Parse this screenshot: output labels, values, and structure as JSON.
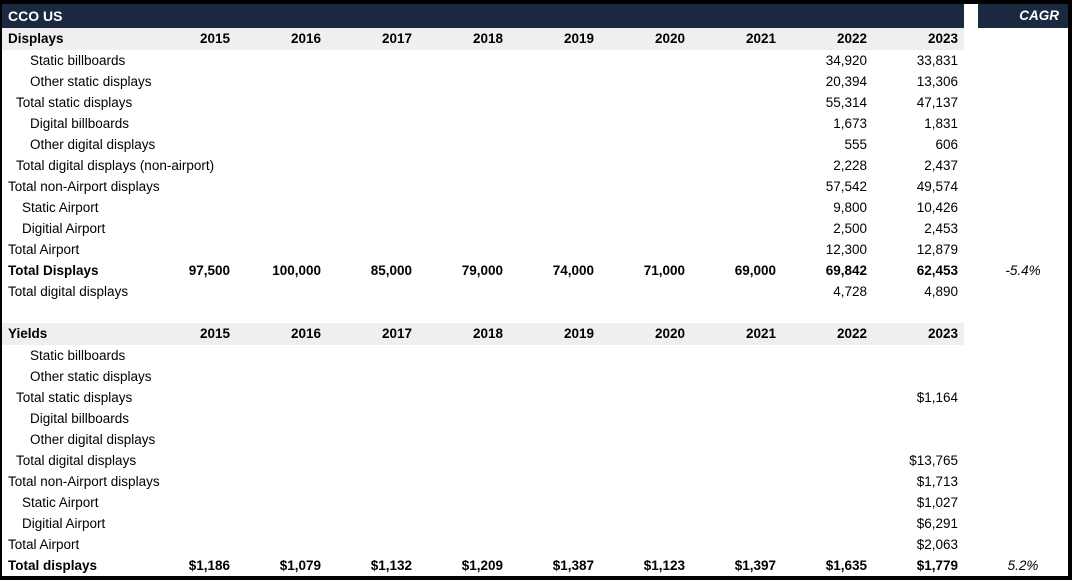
{
  "colors": {
    "header_bar": "#1a2940",
    "header_band": "#efefef",
    "text": "#000000"
  },
  "titlebar": {
    "title": "CCO US",
    "cagr_label": "CAGR"
  },
  "years": [
    "2015",
    "2016",
    "2017",
    "2018",
    "2019",
    "2020",
    "2021",
    "2022",
    "2023"
  ],
  "sections": [
    {
      "label": "Displays",
      "rows": [
        {
          "label": "Static billboards",
          "indent": 3,
          "bold": false,
          "values": [
            "",
            "",
            "",
            "",
            "",
            "",
            "",
            "34,920",
            "33,831"
          ],
          "cagr": ""
        },
        {
          "label": "Other static displays",
          "indent": 3,
          "bold": false,
          "values": [
            "",
            "",
            "",
            "",
            "",
            "",
            "",
            "20,394",
            "13,306"
          ],
          "cagr": ""
        },
        {
          "label": "Total static displays",
          "indent": 1,
          "bold": false,
          "values": [
            "",
            "",
            "",
            "",
            "",
            "",
            "",
            "55,314",
            "47,137"
          ],
          "cagr": ""
        },
        {
          "label": "Digital billboards",
          "indent": 3,
          "bold": false,
          "values": [
            "",
            "",
            "",
            "",
            "",
            "",
            "",
            "1,673",
            "1,831"
          ],
          "cagr": ""
        },
        {
          "label": "Other digital displays",
          "indent": 3,
          "bold": false,
          "values": [
            "",
            "",
            "",
            "",
            "",
            "",
            "",
            "555",
            "606"
          ],
          "cagr": ""
        },
        {
          "label": "Total digital displays (non-airport)",
          "indent": 1,
          "bold": false,
          "values": [
            "",
            "",
            "",
            "",
            "",
            "",
            "",
            "2,228",
            "2,437"
          ],
          "cagr": ""
        },
        {
          "label": "Total non-Airport displays",
          "indent": 0,
          "bold": false,
          "values": [
            "",
            "",
            "",
            "",
            "",
            "",
            "",
            "57,542",
            "49,574"
          ],
          "cagr": ""
        },
        {
          "label": "Static Airport",
          "indent": 2,
          "bold": false,
          "values": [
            "",
            "",
            "",
            "",
            "",
            "",
            "",
            "9,800",
            "10,426"
          ],
          "cagr": ""
        },
        {
          "label": "Digitial Airport",
          "indent": 2,
          "bold": false,
          "values": [
            "",
            "",
            "",
            "",
            "",
            "",
            "",
            "2,500",
            "2,453"
          ],
          "cagr": ""
        },
        {
          "label": "Total Airport",
          "indent": 0,
          "bold": false,
          "values": [
            "",
            "",
            "",
            "",
            "",
            "",
            "",
            "12,300",
            "12,879"
          ],
          "cagr": ""
        },
        {
          "label": "Total Displays",
          "indent": 0,
          "bold": true,
          "values": [
            "97,500",
            "100,000",
            "85,000",
            "79,000",
            "74,000",
            "71,000",
            "69,000",
            "69,842",
            "62,453"
          ],
          "cagr": "-5.4%"
        },
        {
          "label": "Total digital displays",
          "indent": 0,
          "bold": false,
          "values": [
            "",
            "",
            "",
            "",
            "",
            "",
            "",
            "4,728",
            "4,890"
          ],
          "cagr": ""
        }
      ]
    },
    {
      "label": "Yields",
      "rows": [
        {
          "label": "Static billboards",
          "indent": 3,
          "bold": false,
          "values": [
            "",
            "",
            "",
            "",
            "",
            "",
            "",
            "",
            ""
          ],
          "cagr": ""
        },
        {
          "label": "Other static displays",
          "indent": 3,
          "bold": false,
          "values": [
            "",
            "",
            "",
            "",
            "",
            "",
            "",
            "",
            ""
          ],
          "cagr": ""
        },
        {
          "label": "Total static displays",
          "indent": 1,
          "bold": false,
          "values": [
            "",
            "",
            "",
            "",
            "",
            "",
            "",
            "",
            "$1,164"
          ],
          "cagr": ""
        },
        {
          "label": "Digital billboards",
          "indent": 3,
          "bold": false,
          "values": [
            "",
            "",
            "",
            "",
            "",
            "",
            "",
            "",
            ""
          ],
          "cagr": ""
        },
        {
          "label": "Other digital displays",
          "indent": 3,
          "bold": false,
          "values": [
            "",
            "",
            "",
            "",
            "",
            "",
            "",
            "",
            ""
          ],
          "cagr": ""
        },
        {
          "label": "Total digital displays",
          "indent": 1,
          "bold": false,
          "values": [
            "",
            "",
            "",
            "",
            "",
            "",
            "",
            "",
            "$13,765"
          ],
          "cagr": ""
        },
        {
          "label": "Total non-Airport displays",
          "indent": 0,
          "bold": false,
          "values": [
            "",
            "",
            "",
            "",
            "",
            "",
            "",
            "",
            "$1,713"
          ],
          "cagr": ""
        },
        {
          "label": "Static Airport",
          "indent": 2,
          "bold": false,
          "values": [
            "",
            "",
            "",
            "",
            "",
            "",
            "",
            "",
            "$1,027"
          ],
          "cagr": ""
        },
        {
          "label": "Digitial Airport",
          "indent": 2,
          "bold": false,
          "values": [
            "",
            "",
            "",
            "",
            "",
            "",
            "",
            "",
            "$6,291"
          ],
          "cagr": ""
        },
        {
          "label": "Total Airport",
          "indent": 0,
          "bold": false,
          "values": [
            "",
            "",
            "",
            "",
            "",
            "",
            "",
            "",
            "$2,063"
          ],
          "cagr": ""
        },
        {
          "label": "Total displays",
          "indent": 0,
          "bold": true,
          "values": [
            "$1,186",
            "$1,079",
            "$1,132",
            "$1,209",
            "$1,387",
            "$1,123",
            "$1,397",
            "$1,635",
            "$1,779"
          ],
          "cagr": "5.2%"
        }
      ]
    }
  ]
}
